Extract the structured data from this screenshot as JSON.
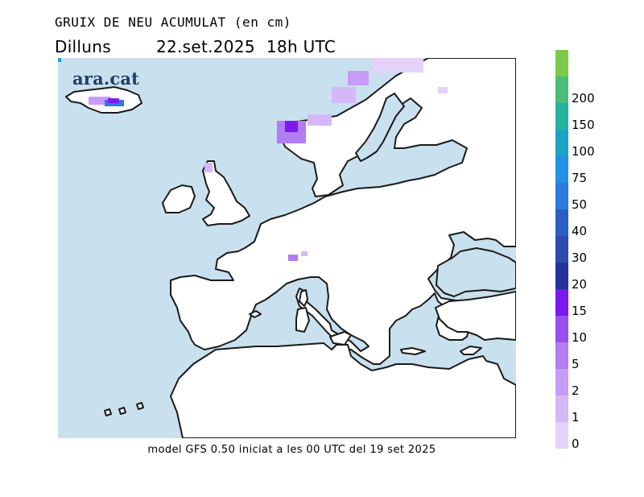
{
  "header": {
    "title": "GRUIX DE NEU ACUMULAT (en cm)",
    "day": "Dilluns",
    "date": "22.set.2025",
    "hour": "18h UTC"
  },
  "branding": {
    "logo_text": "ara.cat"
  },
  "footer": {
    "model_info": "model GFS 0.50 iniciat a les 00 UTC del 19 set 2025"
  },
  "legend": {
    "unit": "cm",
    "levels": [
      {
        "value": "0",
        "color": "#e5d2fa"
      },
      {
        "value": "1",
        "color": "#d6b8f8"
      },
      {
        "value": "2",
        "color": "#c79cf6"
      },
      {
        "value": "5",
        "color": "#b27cf3"
      },
      {
        "value": "10",
        "color": "#9b4ff0"
      },
      {
        "value": "15",
        "color": "#7b1af0"
      },
      {
        "value": "20",
        "color": "#24339a"
      },
      {
        "value": "30",
        "color": "#2b4cae"
      },
      {
        "value": "40",
        "color": "#2b5fc5"
      },
      {
        "value": "50",
        "color": "#2f7ade"
      },
      {
        "value": "75",
        "color": "#2191e6"
      },
      {
        "value": "100",
        "color": "#1ba3c4"
      },
      {
        "value": "150",
        "color": "#24b2a0"
      },
      {
        "value": "200",
        "color": "#4cbc7a"
      },
      {
        "value": "",
        "color": "#7cc94b"
      }
    ]
  },
  "map": {
    "sea_color": "#c9e0ee",
    "land_color": "#ffffff",
    "coast_color": "#1a1a1a",
    "region": "Europe"
  }
}
